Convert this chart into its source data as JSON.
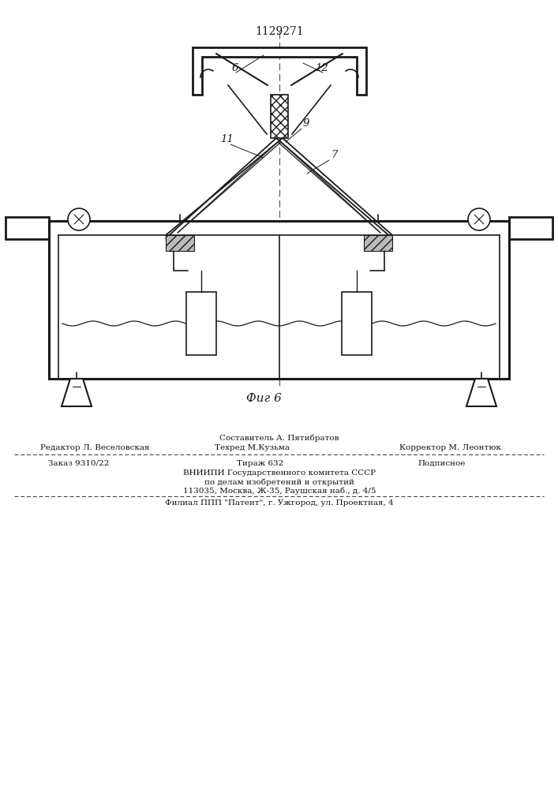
{
  "patent_number": "1129271",
  "fig_label": "Фиг 6",
  "bg_color": "#ffffff",
  "line_color": "#1a1a1a",
  "footer": {
    "sestavitel_label": "Составитель А. Пятибратов",
    "redaktor_label": "Редактор Л. Веселовская",
    "tehred_label": "Техред М.Кузьма",
    "korrektor_label": "Корректор М. Леонтюк",
    "zakaz": "Заказ 9310/22",
    "tirazh": "Тираж 632",
    "podpisnoe": "Подписное",
    "vnipi_line1": "ВНИИПИ Государственного комитета СССР",
    "vnipi_line2": "по делам изобретений и открытий",
    "vnipi_line3": "113035, Москва, Ж-35, Раушская наб., д. 4/5",
    "filial": "Филиал ППП \"Патент\", г. Ужгород, ул. Проектная, 4"
  }
}
